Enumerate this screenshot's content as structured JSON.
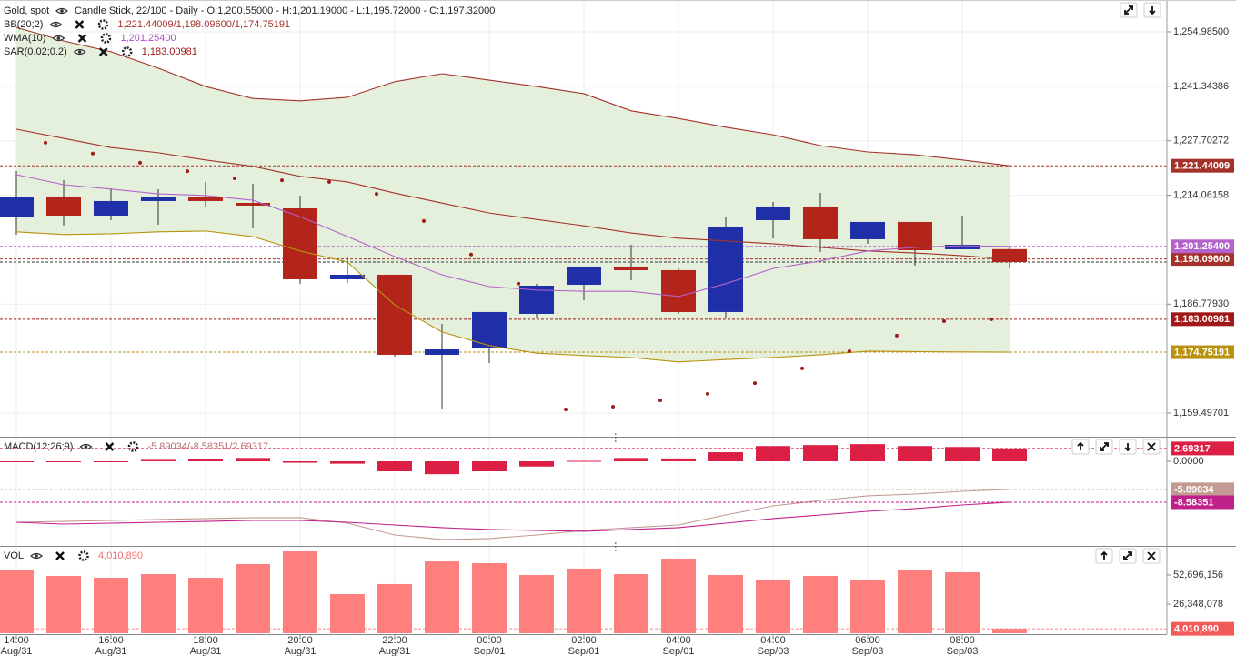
{
  "chart_data": [
    {
      "type": "candlestick",
      "title": "Gold, spot",
      "subtitle": "Candle Stick, 22/100 - Daily - O:1,200.55000 - H:1,201.19000 - L:1,195.72000 - C:1,197.32000",
      "categories": [
        "14:00\nAug/31",
        null,
        "16:00\nAug/31",
        null,
        "18:00\nAug/31",
        null,
        "20:00\nAug/31",
        null,
        "22:00\nAug/31",
        null,
        "00:00\nSep/01",
        null,
        "02:00\nSep/01",
        null,
        "04:00\nSep/01",
        null,
        "04:00\nSep/03",
        null,
        "06:00\nSep/03",
        null,
        "08:00\nSep/03",
        null
      ],
      "open": [
        1208.5,
        1213.74,
        1208.95,
        1212.6,
        1213.51,
        1212.14,
        1210.77,
        1193.0,
        1194.14,
        1174.08,
        1175.68,
        1184.34,
        1191.63,
        1196.19,
        1195.28,
        1184.8,
        1207.81,
        1211.23,
        1203.03,
        1207.36,
        1200.52,
        1200.55
      ],
      "high": [
        1220.12,
        1217.84,
        1215.79,
        1215.56,
        1217.38,
        1216.93,
        1213.96,
        1198.47,
        1194.14,
        1181.83,
        1184.8,
        1191.86,
        1196.19,
        1201.66,
        1195.73,
        1208.72,
        1212.37,
        1214.65,
        1207.36,
        1207.36,
        1208.95,
        1201.19
      ],
      "low": [
        1204.17,
        1206.44,
        1207.81,
        1206.67,
        1211.0,
        1205.76,
        1191.86,
        1192.09,
        1173.63,
        1160.41,
        1172.03,
        1183.2,
        1187.76,
        1192.77,
        1184.34,
        1183.43,
        1203.25,
        1199.84,
        1201.89,
        1196.42,
        1200.52,
        1195.72
      ],
      "close": [
        1213.51,
        1208.95,
        1212.6,
        1213.51,
        1212.6,
        1211.46,
        1193.0,
        1194.14,
        1174.08,
        1175.45,
        1184.8,
        1191.4,
        1196.19,
        1195.28,
        1184.8,
        1205.99,
        1211.23,
        1203.03,
        1207.36,
        1200.29,
        1201.66,
        1197.32
      ],
      "up_color": "#1f2fa8",
      "down_color": "#b3241a",
      "close_line_color": "#333333",
      "ylim": [
        1153.57,
        1262.96
      ],
      "yticks": [
        {
          "value": 1159.49701,
          "label": "1,159.49701"
        },
        {
          "value": 1186.7793,
          "label": "1,186.77930"
        },
        {
          "value": 1214.06158,
          "label": "1,214.06158"
        },
        {
          "value": 1227.70272,
          "label": "1,227.70272"
        },
        {
          "value": 1241.34386,
          "label": "1,241.34386"
        },
        {
          "value": 1254.985,
          "label": "1,254.98500"
        }
      ],
      "grid": true,
      "indicators": [
        {
          "name": "BB(20;2)",
          "readout": "1,221.44009/1,198.09600/1,174.75191",
          "readout_color": "#a5322a",
          "band_color": "#e4efdc",
          "lines": [
            {
              "color": "#a5322a",
              "tag": "1,221.44009",
              "values": [
                1256.1,
                1252.7,
                1250.0,
                1245.9,
                1241.3,
                1238.3,
                1237.7,
                1238.6,
                1242.5,
                1244.5,
                1242.9,
                1241.3,
                1239.5,
                1235.2,
                1233.3,
                1231.1,
                1229.2,
                1226.5,
                1224.9,
                1224.2,
                1222.9,
                1221.44009
              ]
            },
            {
              "color": "#a5322a",
              "tag": "1,198.09600",
              "values": [
                1230.6,
                1228.3,
                1226.0,
                1224.7,
                1222.9,
                1221.3,
                1218.8,
                1217.4,
                1214.6,
                1212.1,
                1209.6,
                1208.0,
                1206.4,
                1204.6,
                1203.3,
                1202.6,
                1201.9,
                1201.0,
                1200.1,
                1199.6,
                1198.9,
                1198.096
              ]
            },
            {
              "color": "#b8920e",
              "tag": "1,174.75191",
              "values": [
                1204.9,
                1204.2,
                1204.4,
                1204.9,
                1205.1,
                1203.7,
                1200.1,
                1197.3,
                1186.6,
                1179.8,
                1176.4,
                1174.5,
                1173.9,
                1173.4,
                1172.3,
                1172.9,
                1173.4,
                1174.1,
                1175.0,
                1174.9,
                1174.8,
                1174.75191
              ]
            }
          ]
        },
        {
          "name": "WMA(10)",
          "readout": "1,201.25400",
          "readout_color": "#b050c8",
          "lines": [
            {
              "color": "#b463cc",
              "tag": "1,201.25400",
              "values": [
                1219.2,
                1216.7,
                1215.6,
                1214.4,
                1214.0,
                1212.8,
                1208.7,
                1203.7,
                1198.7,
                1194.1,
                1191.2,
                1190.3,
                1190.0,
                1190.0,
                1188.7,
                1191.9,
                1195.7,
                1197.6,
                1200.1,
                1201.0,
                1201.4,
                1201.254
              ]
            }
          ]
        },
        {
          "name": "SAR(0.02;0.2)",
          "readout": "1,183.00981",
          "readout_color": "#a01818",
          "dots": {
            "color": "#a01818",
            "tag": "1,183.00981",
            "values": [
              1230.4,
              1227.2,
              1224.5,
              1222.2,
              1220.1,
              1218.3,
              1217.8,
              1217.4,
              1214.4,
              1207.6,
              1199.2,
              1191.9,
              1160.4,
              1161.1,
              1162.7,
              1164.3,
              1167.0,
              1170.7,
              1175.0,
              1178.9,
              1182.5,
              1183.00981
            ]
          }
        }
      ]
    },
    {
      "type": "macd",
      "title": "MACD(12;26;9)",
      "readout": "-5.89034/-8.58351/2.69317",
      "readout_color": "#c07070",
      "histogram": {
        "color": "#dc1f45",
        "tag": "2.69317",
        "values": [
          -0.1,
          -0.1,
          -0.1,
          0.3,
          0.5,
          0.7,
          -0.3,
          -0.5,
          -2.1,
          -2.7,
          -2.1,
          -1.1,
          0.1,
          0.7,
          0.6,
          1.9,
          3.2,
          3.4,
          3.6,
          3.2,
          3.0,
          2.69317
        ]
      },
      "lines": [
        {
          "color": "#c39a92",
          "tag": "-5.89034",
          "values": [
            -12.79,
            -12.6,
            -12.4,
            -12.21,
            -12.02,
            -11.83,
            -11.83,
            -12.98,
            -15.46,
            -16.41,
            -16.22,
            -15.46,
            -14.5,
            -13.93,
            -13.36,
            -11.26,
            -9.35,
            -8.21,
            -7.25,
            -6.87,
            -6.3,
            -5.89034
          ]
        },
        {
          "color": "#c0208a",
          "tag": "-8.58351",
          "values": [
            -12.79,
            -13.17,
            -12.98,
            -12.79,
            -12.6,
            -12.4,
            -12.4,
            -12.79,
            -13.36,
            -13.93,
            -14.31,
            -14.5,
            -14.69,
            -14.31,
            -13.93,
            -12.98,
            -12.02,
            -11.26,
            -10.5,
            -9.92,
            -9.16,
            -8.58351
          ]
        }
      ],
      "ylim": [
        -17.75,
        4.96
      ],
      "yticks": [
        {
          "value": 0,
          "label": "0.0000"
        }
      ]
    },
    {
      "type": "volume",
      "title": "VOL",
      "readout": "4,010,890",
      "readout_color": "#f07070",
      "color": "#ff7f7f",
      "tag_color": "#f25a5a",
      "tag": "4,010,890",
      "values": [
        57600000,
        51900000,
        50200000,
        53500000,
        50200000,
        62600000,
        74100000,
        35400000,
        44500000,
        65000000,
        63400000,
        52700000,
        58500000,
        53500000,
        67500000,
        52700000,
        48600000,
        51900000,
        47800000,
        56800000,
        55200000,
        4010890
      ],
      "ylim": [
        0,
        76570000
      ],
      "yticks": [
        {
          "value": 26348078,
          "label": "26,348,078"
        },
        {
          "value": 52696156,
          "label": "52,696,156"
        }
      ]
    }
  ]
}
